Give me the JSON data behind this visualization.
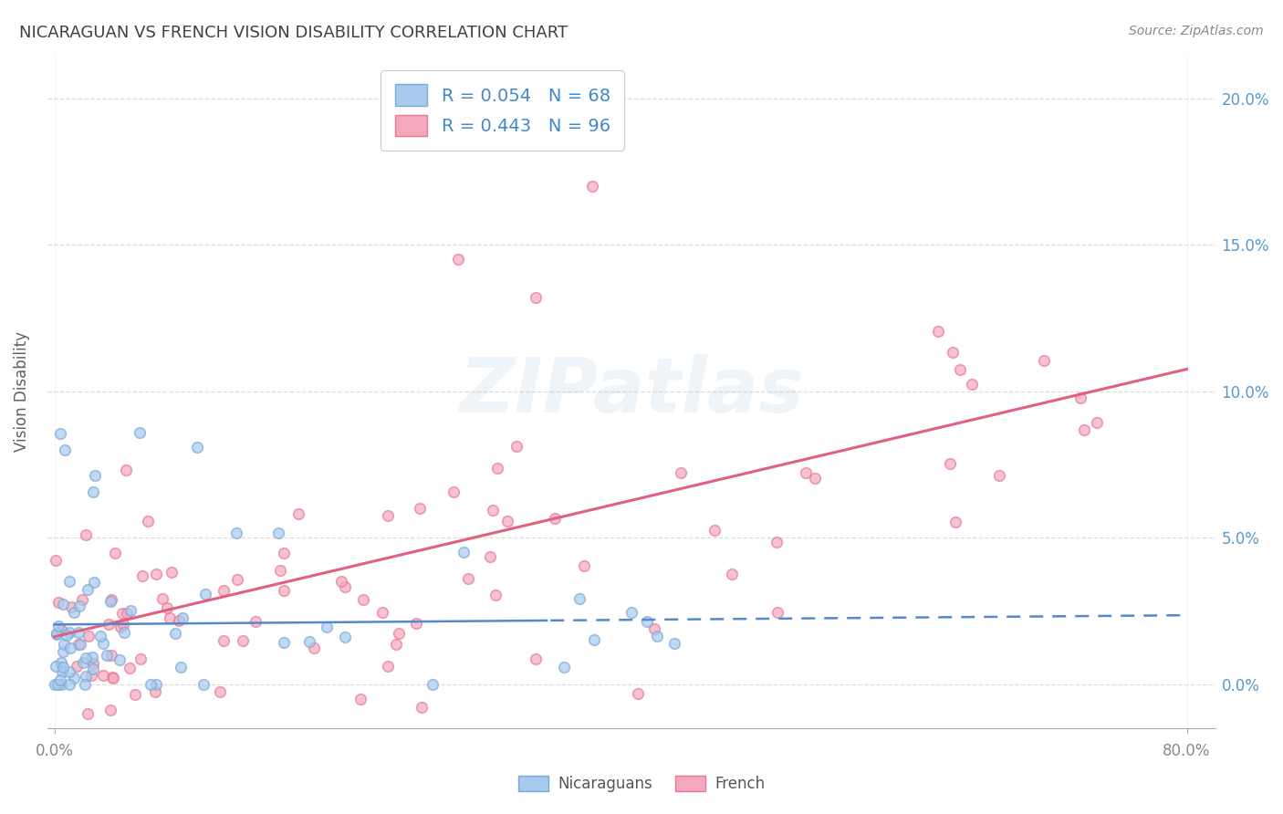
{
  "title": "NICARAGUAN VS FRENCH VISION DISABILITY CORRELATION CHART",
  "source": "Source: ZipAtlas.com",
  "xlabel": "",
  "ylabel": "Vision Disability",
  "xlim": [
    -0.005,
    0.82
  ],
  "ylim": [
    -0.015,
    0.215
  ],
  "xticks": [
    0.0,
    0.8
  ],
  "xticklabels": [
    "0.0%",
    "80.0%"
  ],
  "yticks": [
    0.0,
    0.05,
    0.1,
    0.15,
    0.2
  ],
  "yticklabels": [
    "0.0%",
    "5.0%",
    "10.0%",
    "15.0%",
    "20.0%"
  ],
  "nicaraguan_color": "#A8CAEE",
  "nicaraguan_edge_color": "#7AAAD8",
  "french_color": "#F4A8BC",
  "french_edge_color": "#E87898",
  "nicaraguan_line_color": "#5588CC",
  "french_line_color": "#E06080",
  "r_nicaraguan": 0.054,
  "n_nicaraguan": 68,
  "r_french": 0.443,
  "n_french": 96,
  "watermark": "ZIPatlas",
  "legend_label_nicaraguan": "Nicaraguans",
  "legend_label_french": "French",
  "background_color": "#FFFFFF",
  "grid_color": "#CCCCCC",
  "title_color": "#404040",
  "axis_label_color": "#606060",
  "tick_color": "#888888",
  "source_color": "#888888",
  "r_n_color": "#4488CC",
  "seed": 42
}
